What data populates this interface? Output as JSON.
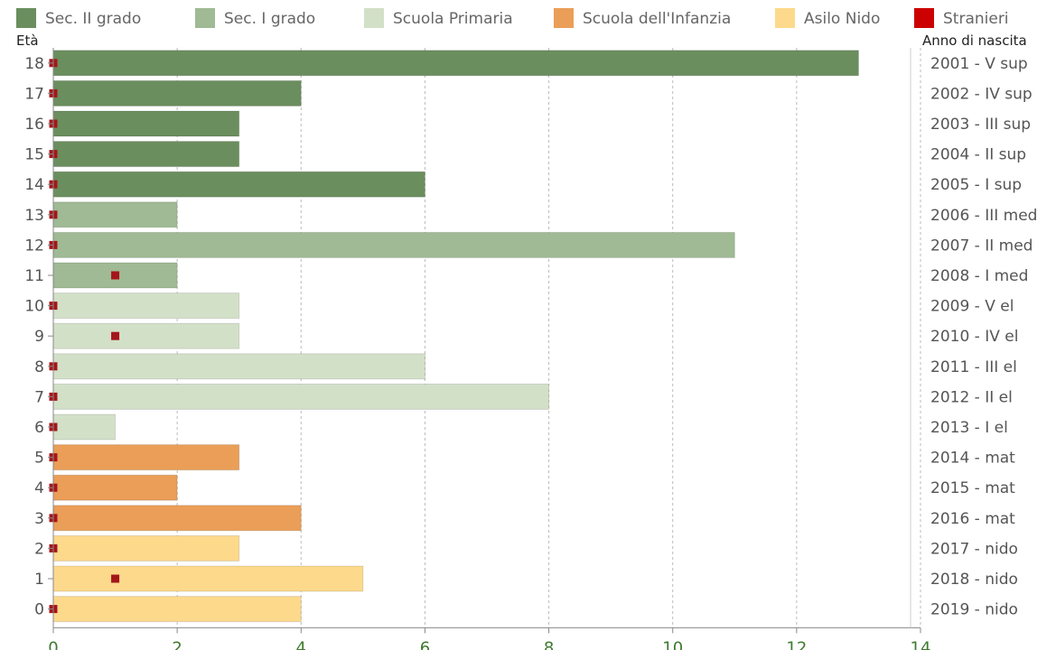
{
  "chart_data": {
    "type": "bar",
    "orientation": "horizontal",
    "ylabel_left": "Età",
    "ylabel_right": "Anno di nascita",
    "xlim": [
      0,
      14
    ],
    "x_ticks": [
      "0",
      "2",
      "4",
      "6",
      "8",
      "10",
      "12",
      "14"
    ],
    "grid": "vertical-dashed",
    "legend_position": "top",
    "legend": [
      {
        "label": "Sec. II grado",
        "color": "#6b8e5e"
      },
      {
        "label": "Sec. I grado",
        "color": "#9fba94"
      },
      {
        "label": "Scuola Primaria",
        "color": "#d3e0c8"
      },
      {
        "label": "Scuola dell'Infanzia",
        "color": "#ea9e57"
      },
      {
        "label": "Asilo Nido",
        "color": "#fdd98b"
      },
      {
        "label": "Stranieri",
        "color": "#cc0000"
      }
    ],
    "categories": [
      {
        "age": "18",
        "year": "2001 - V sup",
        "value": 13,
        "stranieri": 0,
        "group": 0
      },
      {
        "age": "17",
        "year": "2002 - IV sup",
        "value": 4,
        "stranieri": 0,
        "group": 0
      },
      {
        "age": "16",
        "year": "2003 - III sup",
        "value": 3,
        "stranieri": 0,
        "group": 0
      },
      {
        "age": "15",
        "year": "2004 - II sup",
        "value": 3,
        "stranieri": 0,
        "group": 0
      },
      {
        "age": "14",
        "year": "2005 - I sup",
        "value": 6,
        "stranieri": 0,
        "group": 0
      },
      {
        "age": "13",
        "year": "2006 - III med",
        "value": 2,
        "stranieri": 0,
        "group": 1
      },
      {
        "age": "12",
        "year": "2007 - II med",
        "value": 11,
        "stranieri": 0,
        "group": 1
      },
      {
        "age": "11",
        "year": "2008 - I med",
        "value": 2,
        "stranieri": 1,
        "group": 1
      },
      {
        "age": "10",
        "year": "2009 - V el",
        "value": 3,
        "stranieri": 0,
        "group": 2
      },
      {
        "age": "9",
        "year": "2010 - IV el",
        "value": 3,
        "stranieri": 1,
        "group": 2
      },
      {
        "age": "8",
        "year": "2011 - III el",
        "value": 6,
        "stranieri": 0,
        "group": 2
      },
      {
        "age": "7",
        "year": "2012 - II el",
        "value": 8,
        "stranieri": 0,
        "group": 2
      },
      {
        "age": "6",
        "year": "2013 - I el",
        "value": 1,
        "stranieri": 0,
        "group": 2
      },
      {
        "age": "5",
        "year": "2014 - mat",
        "value": 3,
        "stranieri": 0,
        "group": 3
      },
      {
        "age": "4",
        "year": "2015 - mat",
        "value": 2,
        "stranieri": 0,
        "group": 3
      },
      {
        "age": "3",
        "year": "2016 - mat",
        "value": 4,
        "stranieri": 0,
        "group": 3
      },
      {
        "age": "2",
        "year": "2017 - nido",
        "value": 3,
        "stranieri": 0,
        "group": 4
      },
      {
        "age": "1",
        "year": "2018 - nido",
        "value": 5,
        "stranieri": 1,
        "group": 4
      },
      {
        "age": "0",
        "year": "2019 - nido",
        "value": 4,
        "stranieri": 0,
        "group": 4
      }
    ],
    "stranieri_marker_color": "#a4161a"
  }
}
